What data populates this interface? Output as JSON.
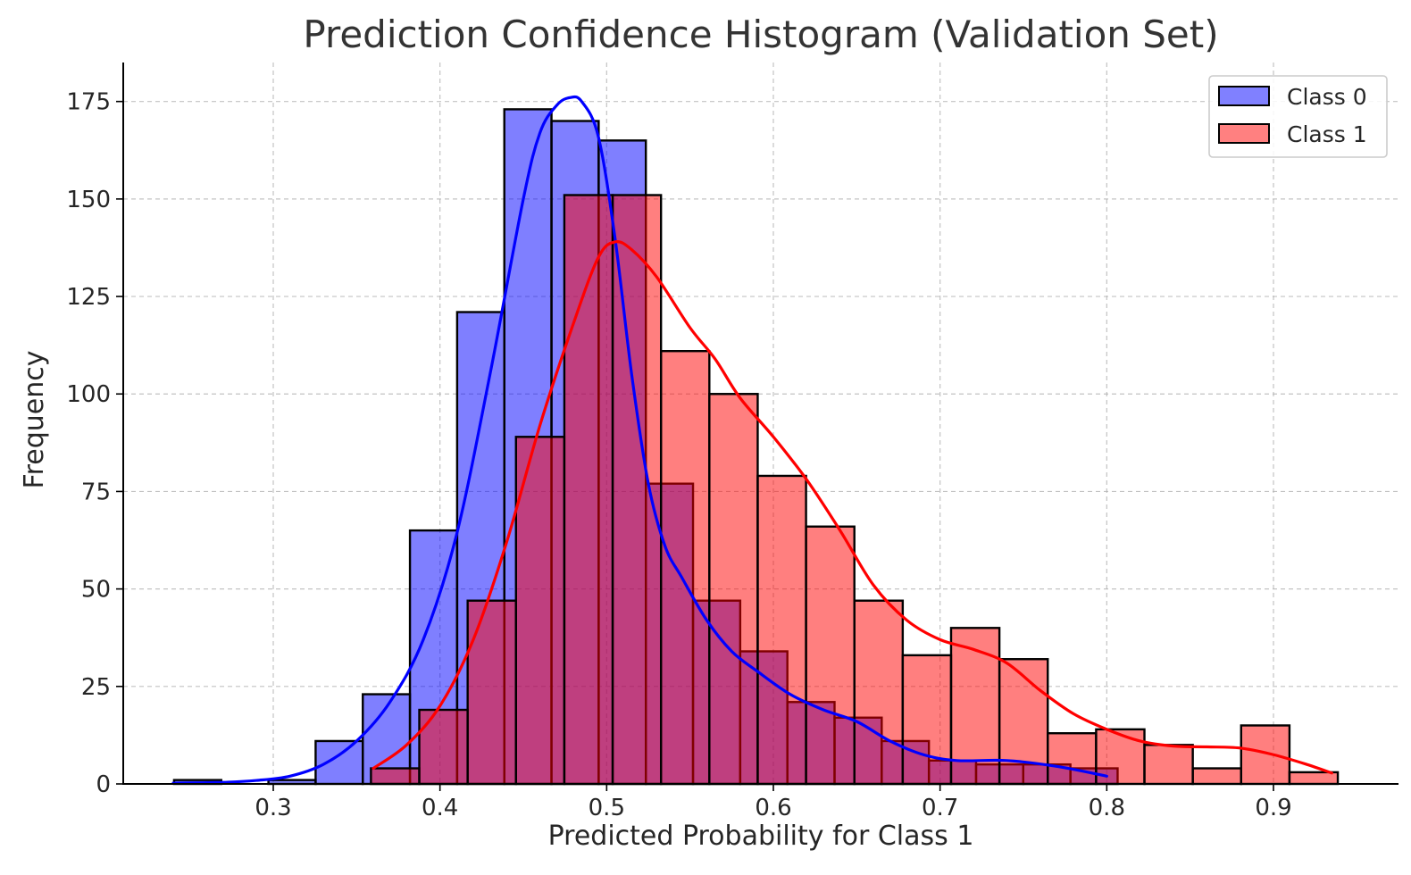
{
  "chart_data": {
    "type": "histogram",
    "title": "Prediction Confidence Histogram (Validation Set)",
    "xlabel": "Predicted Probability for Class 1",
    "ylabel": "Frequency",
    "xlim": [
      0.21,
      0.975
    ],
    "ylim": [
      0,
      185
    ],
    "xticks": [
      0.3,
      0.4,
      0.5,
      0.6,
      0.7,
      0.8,
      0.9
    ],
    "xtick_labels": [
      "0.3",
      "0.4",
      "0.5",
      "0.6",
      "0.7",
      "0.8",
      "0.9"
    ],
    "yticks": [
      0,
      25,
      50,
      75,
      100,
      125,
      150,
      175
    ],
    "ytick_labels": [
      "0",
      "25",
      "50",
      "75",
      "100",
      "125",
      "150",
      "175"
    ],
    "grid": true,
    "legend_position": "top-right",
    "series": [
      {
        "name": "Class 0",
        "color": "#0000ff",
        "bar_fill": "#8080ff",
        "bin_edges": [
          0.2405,
          0.2688,
          0.2971,
          0.3254,
          0.3537,
          0.382,
          0.4103,
          0.4386,
          0.4669,
          0.4952,
          0.5235,
          0.5518,
          0.5801,
          0.6084,
          0.6367,
          0.665,
          0.6933,
          0.7216,
          0.7499,
          0.7782,
          0.8065
        ],
        "counts": [
          1,
          0,
          1,
          11,
          23,
          65,
          121,
          173,
          170,
          165,
          77,
          47,
          34,
          21,
          17,
          11,
          6,
          5,
          5,
          4
        ],
        "kde": [
          [
            0.24,
            0.2
          ],
          [
            0.27,
            0.4
          ],
          [
            0.29,
            0.9
          ],
          [
            0.31,
            2
          ],
          [
            0.33,
            5
          ],
          [
            0.35,
            11
          ],
          [
            0.37,
            21
          ],
          [
            0.39,
            37
          ],
          [
            0.41,
            64
          ],
          [
            0.43,
            105
          ],
          [
            0.45,
            150
          ],
          [
            0.46,
            167
          ],
          [
            0.47,
            174
          ],
          [
            0.478,
            176
          ],
          [
            0.485,
            175
          ],
          [
            0.495,
            166
          ],
          [
            0.505,
            140
          ],
          [
            0.515,
            105
          ],
          [
            0.525,
            77
          ],
          [
            0.535,
            61
          ],
          [
            0.545,
            53
          ],
          [
            0.56,
            42
          ],
          [
            0.575,
            34
          ],
          [
            0.59,
            29
          ],
          [
            0.61,
            23
          ],
          [
            0.63,
            19
          ],
          [
            0.65,
            16
          ],
          [
            0.67,
            11
          ],
          [
            0.69,
            7.5
          ],
          [
            0.71,
            6
          ],
          [
            0.74,
            6
          ],
          [
            0.77,
            4.5
          ],
          [
            0.8,
            2
          ]
        ]
      },
      {
        "name": "Class 1",
        "color": "#ff0000",
        "bar_fill": "#ff8080",
        "bin_edges": [
          0.3586,
          0.3876,
          0.4166,
          0.4456,
          0.4746,
          0.5036,
          0.5326,
          0.5616,
          0.5906,
          0.6196,
          0.6486,
          0.6776,
          0.7066,
          0.7356,
          0.7646,
          0.7936,
          0.8226,
          0.8516,
          0.8806,
          0.9096,
          0.9386
        ],
        "counts": [
          4,
          19,
          47,
          89,
          151,
          151,
          111,
          100,
          79,
          66,
          47,
          33,
          40,
          32,
          13,
          14,
          10,
          4,
          15,
          3
        ],
        "kde": [
          [
            0.36,
            4
          ],
          [
            0.38,
            10
          ],
          [
            0.4,
            20
          ],
          [
            0.42,
            37
          ],
          [
            0.44,
            62
          ],
          [
            0.46,
            92
          ],
          [
            0.48,
            118
          ],
          [
            0.495,
            135
          ],
          [
            0.505,
            139
          ],
          [
            0.515,
            137
          ],
          [
            0.53,
            130
          ],
          [
            0.55,
            117
          ],
          [
            0.565,
            109
          ],
          [
            0.58,
            99
          ],
          [
            0.6,
            89
          ],
          [
            0.62,
            78
          ],
          [
            0.64,
            65
          ],
          [
            0.66,
            51
          ],
          [
            0.68,
            42
          ],
          [
            0.7,
            37
          ],
          [
            0.72,
            34.5
          ],
          [
            0.74,
            31
          ],
          [
            0.76,
            24
          ],
          [
            0.78,
            18
          ],
          [
            0.8,
            14
          ],
          [
            0.82,
            11
          ],
          [
            0.84,
            9.7
          ],
          [
            0.86,
            9.5
          ],
          [
            0.88,
            9.2
          ],
          [
            0.9,
            7.5
          ],
          [
            0.92,
            5
          ],
          [
            0.935,
            2.8
          ]
        ]
      }
    ]
  }
}
